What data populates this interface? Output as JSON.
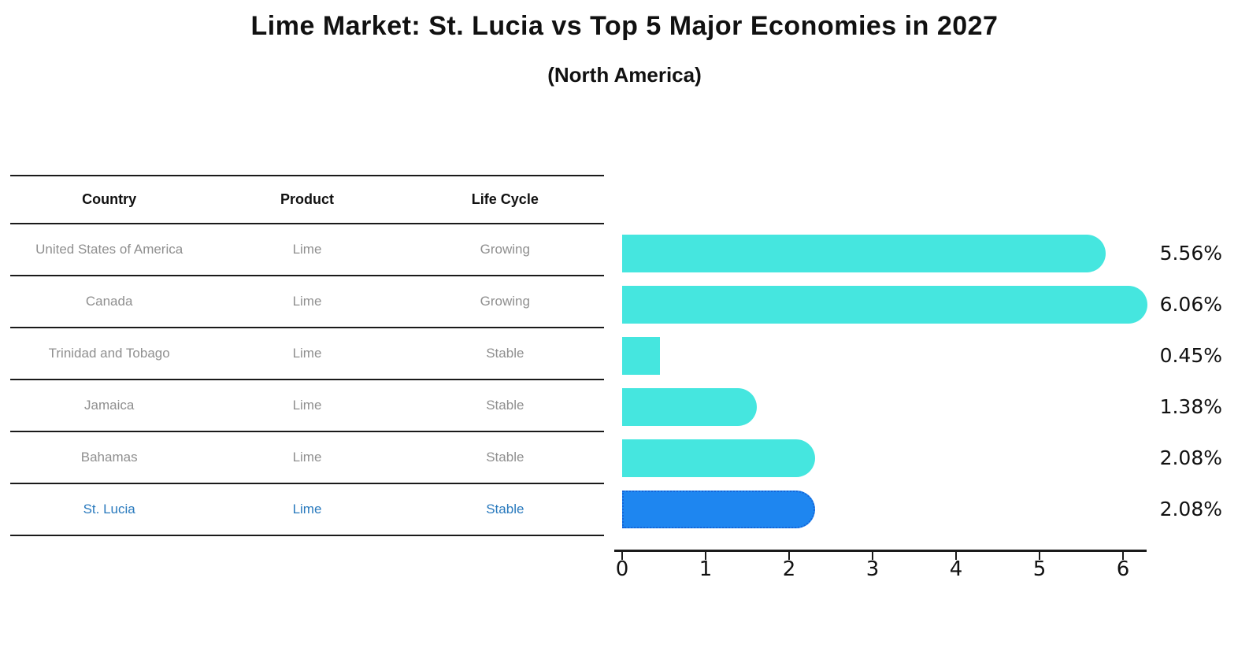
{
  "title": "Lime Market: St. Lucia vs Top 5 Major Economies in 2027",
  "subtitle": "(North America)",
  "table": {
    "headers": [
      "Country",
      "Product",
      "Life Cycle"
    ],
    "rows": [
      {
        "country": "United States of America",
        "product": "Lime",
        "life_cycle": "Growing",
        "highlight": false
      },
      {
        "country": "Canada",
        "product": "Lime",
        "life_cycle": "Growing",
        "highlight": false
      },
      {
        "country": "Trinidad and Tobago",
        "product": "Lime",
        "life_cycle": "Stable",
        "highlight": false
      },
      {
        "country": "Jamaica",
        "product": "Lime",
        "life_cycle": "Stable",
        "highlight": false
      },
      {
        "country": "Bahamas",
        "product": "Lime",
        "life_cycle": "Stable",
        "highlight": false
      },
      {
        "country": "St. Lucia",
        "product": "Lime",
        "life_cycle": "Stable",
        "highlight": true
      }
    ]
  },
  "chart_data": {
    "type": "bar",
    "orientation": "horizontal",
    "title": "Lime Market: St. Lucia vs Top 5 Major Economies in 2027",
    "subtitle": "(North America)",
    "categories": [
      "United States of America",
      "Canada",
      "Trinidad and Tobago",
      "Jamaica",
      "Bahamas",
      "St. Lucia"
    ],
    "values": [
      5.56,
      6.06,
      0.45,
      1.38,
      2.08,
      2.08
    ],
    "value_labels": [
      "5.56%",
      "6.06%",
      "0.45%",
      "1.38%",
      "2.08%",
      "2.08%"
    ],
    "x_ticks": [
      "0",
      "1",
      "2",
      "3",
      "4",
      "5",
      "6"
    ],
    "xlim": [
      0,
      6.37
    ],
    "grid": false,
    "legend": false,
    "highlight_index": 5
  },
  "colors": {
    "bar": "#45e6df",
    "highlight_bar": "#1e86f0",
    "highlight_border": "#1565d8",
    "highlight_text": "#2879bd",
    "row_text": "#8f8f8f",
    "header_text": "#111111",
    "value_text": "#111111",
    "line": "#1a1a1a"
  }
}
